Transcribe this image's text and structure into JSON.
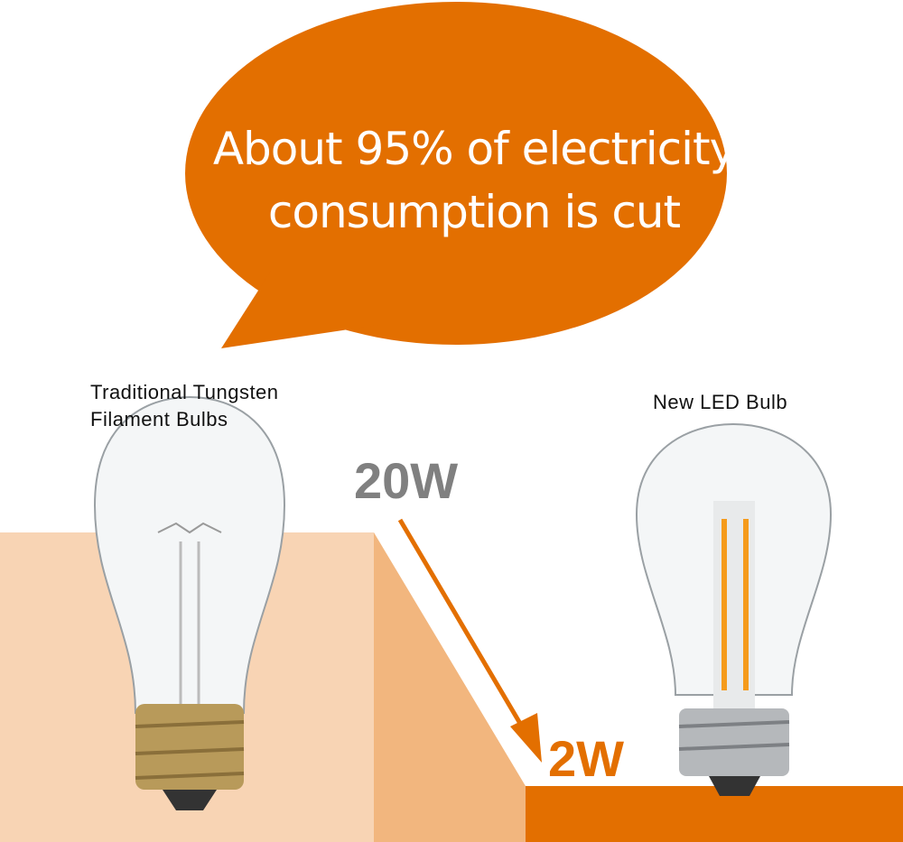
{
  "headline": {
    "line1": "About 95% of electricity",
    "line2": "consumption is cut"
  },
  "traditional": {
    "label_line1": "Traditional Tungsten",
    "label_line2": "Filament Bulbs",
    "wattage": "20W"
  },
  "led": {
    "label": "New LED Bulb",
    "wattage": "2W"
  },
  "colors": {
    "accent": "#e36f00",
    "light_peach": "#f8d4b4",
    "mid_peach": "#f2b67e",
    "gray_text": "#808080"
  }
}
